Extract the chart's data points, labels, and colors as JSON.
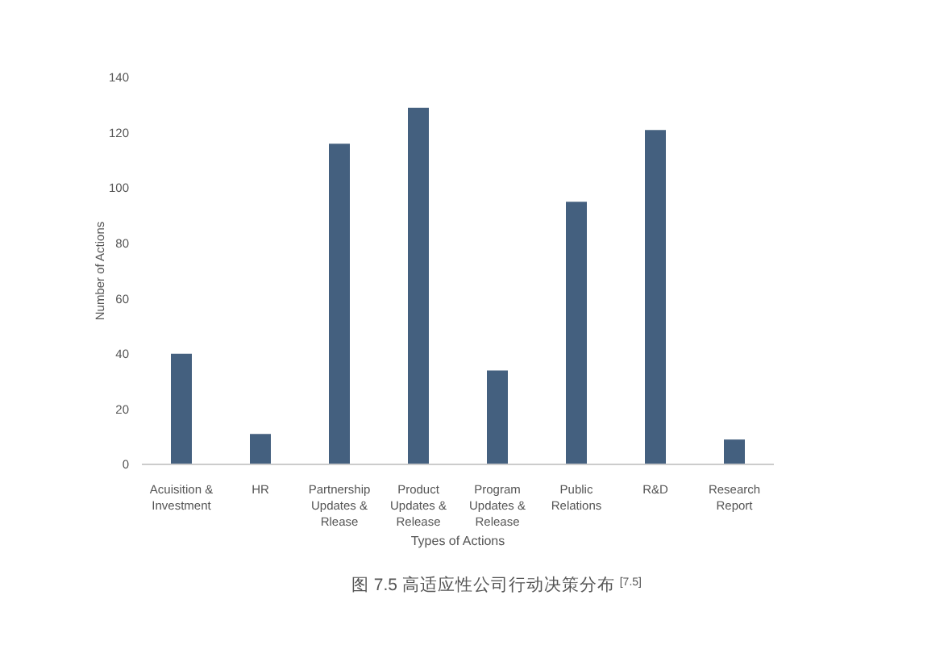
{
  "chart_data": {
    "type": "bar",
    "xlabel": "Types of Actions",
    "ylabel": "Number of Actions",
    "categories": [
      "Acuisition & Investment",
      "HR",
      "Partnership Updates & Rlease",
      "Product Updates & Release",
      "Program Updates & Release",
      "Public Relations",
      "R&D",
      "Research Report"
    ],
    "values": [
      40,
      11,
      116,
      129,
      34,
      95,
      121,
      9
    ],
    "color": "#44607f",
    "ylim": [
      0,
      140
    ],
    "yticks": [
      0,
      20,
      40,
      60,
      80,
      100,
      120,
      140
    ],
    "grid": false,
    "annotations": [
      "图 7.5 高适应性公司行动决策分布 $^{[7.5]}$"
    ]
  }
}
